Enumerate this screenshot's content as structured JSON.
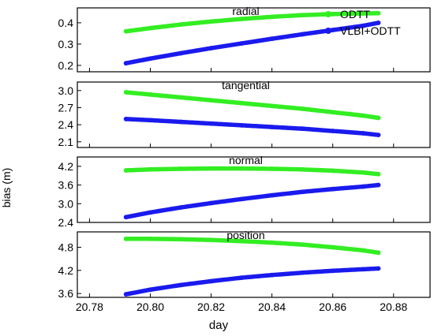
{
  "chart_data": {
    "type": "scatter",
    "xlabel": "day",
    "ylabel": "bias (m)",
    "xlim": [
      20.776,
      20.892
    ],
    "xticks": [
      20.78,
      20.8,
      20.82,
      20.84,
      20.86,
      20.88
    ],
    "xtick_labels": [
      "20.78",
      "20.80",
      "20.82",
      "20.84",
      "20.86",
      "20.88"
    ],
    "legend": {
      "placement": "top-right",
      "entries": [
        {
          "label": "ODTT",
          "color": "#33ee22"
        },
        {
          "label": "VLBI+ODTT",
          "color": "#1a1aee"
        }
      ]
    },
    "panels": [
      {
        "title": "radial",
        "ylim": [
          0.17,
          0.47
        ],
        "yticks": [
          0.2,
          0.3,
          0.4
        ],
        "ytick_labels": [
          "0.2",
          "0.3",
          "0.4"
        ],
        "series": [
          {
            "name": "ODTT",
            "color": "#33ee22",
            "x": [
              20.792,
              20.8,
              20.81,
              20.82,
              20.83,
              20.84,
              20.85,
              20.86,
              20.87,
              20.875
            ],
            "y": [
              0.36,
              0.375,
              0.392,
              0.406,
              0.418,
              0.428,
              0.436,
              0.441,
              0.444,
              0.445
            ]
          },
          {
            "name": "VLBI+ODTT",
            "color": "#1a1aee",
            "x": [
              20.792,
              20.8,
              20.81,
              20.82,
              20.83,
              20.84,
              20.85,
              20.86,
              20.87,
              20.875
            ],
            "y": [
              0.21,
              0.232,
              0.257,
              0.281,
              0.303,
              0.325,
              0.346,
              0.366,
              0.386,
              0.4
            ]
          }
        ]
      },
      {
        "title": "tangential",
        "ylim": [
          2.0,
          3.15
        ],
        "yticks": [
          2.1,
          2.4,
          2.7,
          3.0
        ],
        "ytick_labels": [
          "2.1",
          "2.4",
          "2.7",
          "3.0"
        ],
        "series": [
          {
            "name": "ODTT",
            "color": "#33ee22",
            "x": [
              20.792,
              20.8,
              20.81,
              20.82,
              20.83,
              20.84,
              20.85,
              20.86,
              20.87,
              20.875
            ],
            "y": [
              2.97,
              2.93,
              2.88,
              2.83,
              2.78,
              2.73,
              2.68,
              2.62,
              2.56,
              2.52
            ]
          },
          {
            "name": "VLBI+ODTT",
            "color": "#1a1aee",
            "x": [
              20.792,
              20.8,
              20.81,
              20.82,
              20.83,
              20.84,
              20.85,
              20.86,
              20.87,
              20.875
            ],
            "y": [
              2.5,
              2.48,
              2.45,
              2.42,
              2.39,
              2.36,
              2.33,
              2.29,
              2.25,
              2.22
            ]
          }
        ]
      },
      {
        "title": "normal",
        "ylim": [
          2.4,
          4.5
        ],
        "yticks": [
          2.4,
          3.0,
          3.6,
          4.2
        ],
        "ytick_labels": [
          "2.4",
          "3.0",
          "3.6",
          "4.2"
        ],
        "series": [
          {
            "name": "ODTT",
            "color": "#33ee22",
            "x": [
              20.792,
              20.8,
              20.81,
              20.82,
              20.83,
              20.84,
              20.85,
              20.86,
              20.87,
              20.875
            ],
            "y": [
              4.07,
              4.1,
              4.12,
              4.13,
              4.13,
              4.12,
              4.1,
              4.06,
              4.0,
              3.95
            ]
          },
          {
            "name": "VLBI+ODTT",
            "color": "#1a1aee",
            "x": [
              20.792,
              20.8,
              20.81,
              20.82,
              20.83,
              20.84,
              20.85,
              20.86,
              20.87,
              20.875
            ],
            "y": [
              2.57,
              2.72,
              2.88,
              3.02,
              3.15,
              3.27,
              3.38,
              3.47,
              3.55,
              3.6
            ]
          }
        ]
      },
      {
        "title": "position",
        "ylim": [
          3.5,
          5.2
        ],
        "yticks": [
          3.6,
          4.2,
          4.8
        ],
        "ytick_labels": [
          "3.6",
          "4.2",
          "4.8"
        ],
        "series": [
          {
            "name": "ODTT",
            "color": "#33ee22",
            "x": [
              20.792,
              20.8,
              20.81,
              20.82,
              20.83,
              20.84,
              20.85,
              20.86,
              20.87,
              20.875
            ],
            "y": [
              5.02,
              5.02,
              5.01,
              4.99,
              4.96,
              4.92,
              4.87,
              4.8,
              4.72,
              4.66
            ]
          },
          {
            "name": "VLBI+ODTT",
            "color": "#1a1aee",
            "x": [
              20.792,
              20.8,
              20.81,
              20.82,
              20.83,
              20.84,
              20.85,
              20.86,
              20.87,
              20.875
            ],
            "y": [
              3.58,
              3.7,
              3.82,
              3.92,
              4.01,
              4.08,
              4.14,
              4.19,
              4.23,
              4.25
            ]
          }
        ]
      }
    ]
  }
}
